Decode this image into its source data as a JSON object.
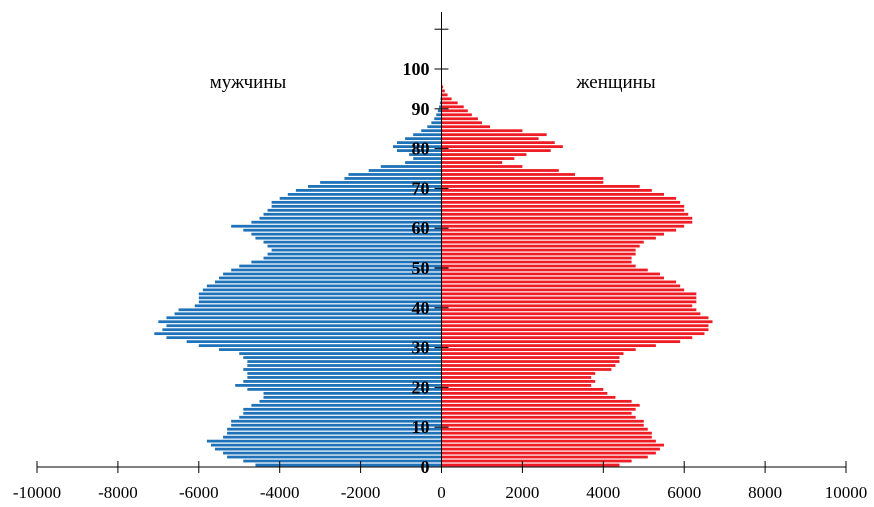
{
  "chart_data": {
    "type": "bar",
    "orientation": "horizontal",
    "layout": "population-pyramid",
    "xlim": [
      -10000,
      10000
    ],
    "x_ticks": [
      -10000,
      -8000,
      -6000,
      -4000,
      -2000,
      0,
      2000,
      4000,
      6000,
      8000,
      10000
    ],
    "x_tick_labels": [
      "-10000",
      "-8000",
      "-6000",
      "-4000",
      "-2000",
      "0",
      "2000",
      "4000",
      "6000",
      "8000",
      "10000"
    ],
    "y_ticks": [
      0,
      10,
      20,
      30,
      40,
      50,
      60,
      70,
      80,
      90,
      100
    ],
    "y_tick_labels": [
      "0",
      "10",
      "20",
      "30",
      "40",
      "50",
      "60",
      "70",
      "80",
      "90",
      "100"
    ],
    "ylim": [
      0,
      110
    ],
    "grid": false,
    "series": [
      {
        "name": "мужчины",
        "color": "#1f72b8",
        "ages": [
          0,
          1,
          2,
          3,
          4,
          5,
          6,
          7,
          8,
          9,
          10,
          11,
          12,
          13,
          14,
          15,
          16,
          17,
          18,
          19,
          20,
          21,
          22,
          23,
          24,
          25,
          26,
          27,
          28,
          29,
          30,
          31,
          32,
          33,
          34,
          35,
          36,
          37,
          38,
          39,
          40,
          41,
          42,
          43,
          44,
          45,
          46,
          47,
          48,
          49,
          50,
          51,
          52,
          53,
          54,
          55,
          56,
          57,
          58,
          59,
          60,
          61,
          62,
          63,
          64,
          65,
          66,
          67,
          68,
          69,
          70,
          71,
          72,
          73,
          74,
          75,
          76,
          77,
          78,
          79,
          80,
          81,
          82,
          83,
          84,
          85,
          86,
          87,
          88,
          89,
          90,
          91,
          92,
          93,
          94,
          95,
          96
        ],
        "values": [
          -4600,
          -4900,
          -5300,
          -5400,
          -5600,
          -5700,
          -5800,
          -5400,
          -5300,
          -5300,
          -5200,
          -5200,
          -5000,
          -4900,
          -4900,
          -4700,
          -4500,
          -4400,
          -4400,
          -4800,
          -5100,
          -4900,
          -4800,
          -4800,
          -4900,
          -4800,
          -4800,
          -4900,
          -5000,
          -5500,
          -6000,
          -6300,
          -6800,
          -7100,
          -6900,
          -6800,
          -7000,
          -6800,
          -6600,
          -6500,
          -6100,
          -6000,
          -6000,
          -6000,
          -5900,
          -5800,
          -5600,
          -5500,
          -5400,
          -5200,
          -5000,
          -4700,
          -4400,
          -4300,
          -4200,
          -4300,
          -4400,
          -4600,
          -4700,
          -4900,
          -5200,
          -4700,
          -4500,
          -4400,
          -4300,
          -4200,
          -4200,
          -4000,
          -3800,
          -3600,
          -3300,
          -3000,
          -2400,
          -2300,
          -1800,
          -1500,
          -900,
          -700,
          -800,
          -1100,
          -1200,
          -1100,
          -900,
          -700,
          -500,
          -350,
          -250,
          -180,
          -130,
          -90,
          -60,
          -40,
          -25,
          -15,
          -10,
          -5,
          -3
        ]
      },
      {
        "name": "женщины",
        "color": "#ee1c25",
        "ages": [
          0,
          1,
          2,
          3,
          4,
          5,
          6,
          7,
          8,
          9,
          10,
          11,
          12,
          13,
          14,
          15,
          16,
          17,
          18,
          19,
          20,
          21,
          22,
          23,
          24,
          25,
          26,
          27,
          28,
          29,
          30,
          31,
          32,
          33,
          34,
          35,
          36,
          37,
          38,
          39,
          40,
          41,
          42,
          43,
          44,
          45,
          46,
          47,
          48,
          49,
          50,
          51,
          52,
          53,
          54,
          55,
          56,
          57,
          58,
          59,
          60,
          61,
          62,
          63,
          64,
          65,
          66,
          67,
          68,
          69,
          70,
          71,
          72,
          73,
          74,
          75,
          76,
          77,
          78,
          79,
          80,
          81,
          82,
          83,
          84,
          85,
          86,
          87,
          88,
          89,
          90,
          91,
          92,
          93,
          94,
          95,
          96
        ],
        "values": [
          4400,
          4700,
          5100,
          5300,
          5400,
          5500,
          5300,
          5200,
          5200,
          5100,
          5000,
          5000,
          4800,
          4700,
          4800,
          4900,
          4700,
          4300,
          4100,
          4000,
          3700,
          3800,
          3700,
          3800,
          4200,
          4300,
          4400,
          4400,
          4500,
          4800,
          5300,
          5900,
          6200,
          6500,
          6600,
          6600,
          6700,
          6600,
          6400,
          6300,
          6200,
          6300,
          6300,
          6300,
          6000,
          5900,
          5800,
          5500,
          5400,
          5100,
          4800,
          4700,
          4700,
          4800,
          4800,
          4900,
          5000,
          5300,
          5500,
          5800,
          6000,
          6200,
          6200,
          6100,
          6000,
          6000,
          5900,
          5800,
          5500,
          5200,
          4900,
          4000,
          4000,
          3300,
          2900,
          2000,
          1500,
          1800,
          2100,
          2700,
          3000,
          2800,
          2400,
          2600,
          2000,
          1200,
          1000,
          900,
          750,
          650,
          550,
          400,
          250,
          150,
          80,
          40,
          15
        ]
      }
    ]
  }
}
